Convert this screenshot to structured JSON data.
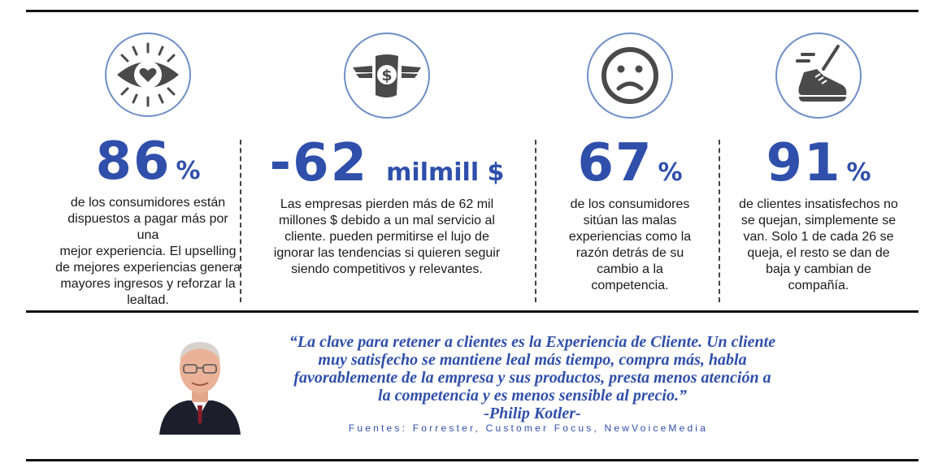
{
  "stats": [
    {
      "icon": "heart-eye-icon",
      "value": "86",
      "unit": "%",
      "lines": [
        "de los consumidores están",
        "dispuestos a pagar más por una",
        "mejor experiencia. El upselling",
        "de mejores experiencias genera",
        "mayores ingresos y reforzar la",
        "lealtad."
      ]
    },
    {
      "icon": "winged-money-icon",
      "value": "-62",
      "unit": "milmill $",
      "lines": [
        "Las empresas pierden más de 62 mil",
        "millones $ debido a un mal servicio al",
        "cliente. pueden permitirse el lujo de",
        "ignorar las tendencias si quieren seguir",
        "siendo competitivos y relevantes."
      ]
    },
    {
      "icon": "sad-face-icon",
      "value": "67",
      "unit": "%",
      "lines": [
        "de los consumidores",
        "sitúan las malas",
        "experiencias como la",
        "razón detrás de su",
        "cambio a la",
        "competencia."
      ]
    },
    {
      "icon": "running-shoe-icon",
      "value": "91",
      "unit": "%",
      "lines": [
        "de clientes insatisfechos no",
        "se quejan, simplemente se",
        "van. Solo 1 de cada 26 se",
        "queja, el resto se dan de",
        "baja y cambian de",
        "compañía."
      ]
    }
  ],
  "quote": {
    "lines": [
      "“La clave para retener a clientes es la Experiencia de Cliente. Un cliente",
      "muy satisfecho se mantiene leal más tiempo, compra más, habla",
      "favorablemente de la empresa y sus productos, presta menos atención a",
      "la competencia y es menos sensible al precio.”"
    ],
    "author": "-Philip Kotler-"
  },
  "sources": "Fuentes: Forrester, Customer Focus, NewVoiceMedia",
  "colors": {
    "accent": "#2f4fab",
    "icon_ring": "#6f8fc7",
    "icon_fill": "#4a4a4a"
  }
}
